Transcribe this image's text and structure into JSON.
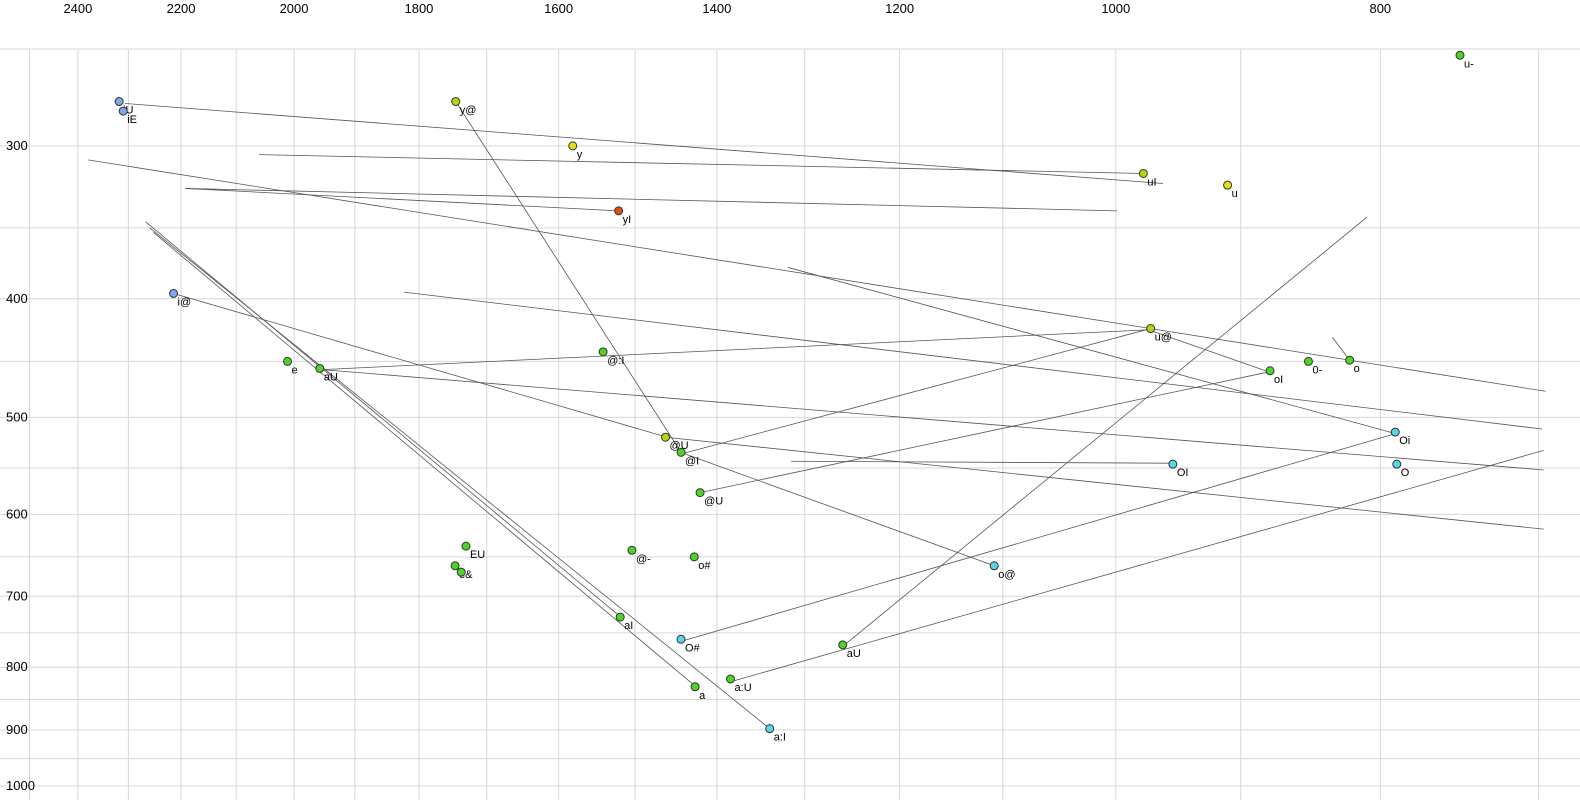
{
  "chart_data": {
    "type": "scatter",
    "title": "",
    "description": "Vowel formant diphthong plot: F2 (Hz) on top axis reversed log scale, F1 (Hz) on left axis increasing downward log scale, points are vowels with trajectory lines",
    "x_axis": {
      "tick_labels": [
        2400,
        2200,
        2000,
        1800,
        1600,
        1400,
        1200,
        1000,
        800
      ],
      "scale": "log",
      "range": [
        2563,
        676
      ],
      "grid_start": 2500,
      "grid_end": 700,
      "grid_step": 100
    },
    "y_axis": {
      "tick_labels": [
        300,
        400,
        500,
        600,
        700,
        800,
        900,
        1000
      ],
      "scale": "log",
      "range": [
        228,
        1027
      ],
      "grid_start": 250,
      "grid_end": 1000,
      "grid_step": 50
    },
    "colors": {
      "green": "#4fd32b",
      "yellowgreen": "#b9d411",
      "yellow": "#e3e00e",
      "blue": "#7ea8e8",
      "cyan": "#5cd3ee",
      "red": "#dd4f10",
      "grid": "#d6d6d6",
      "line": "#555555",
      "text": "#000000"
    },
    "points": [
      {
        "label": "u-",
        "f2": 748,
        "f1": 253,
        "color": "green"
      },
      {
        "label": "iU",
        "f2": 2318,
        "f1": 276,
        "color": "blue"
      },
      {
        "label": "iE",
        "f2": 2310,
        "f1": 281,
        "color": "blue"
      },
      {
        "label": "y@",
        "f2": 1745,
        "f1": 276,
        "color": "yellowgreen"
      },
      {
        "label": "y",
        "f2": 1581,
        "f1": 300,
        "color": "yellow"
      },
      {
        "label": "uI",
        "f2": 977,
        "f1": 316,
        "color": "yellowgreen"
      },
      {
        "label": "u",
        "f2": 910,
        "f1": 323,
        "color": "yellow"
      },
      {
        "label": "yI",
        "f2": 1521,
        "f1": 339,
        "color": "red"
      },
      {
        "label": "i@",
        "f2": 2214,
        "f1": 396,
        "color": "blue"
      },
      {
        "label": "u@",
        "f2": 971,
        "f1": 423,
        "color": "yellowgreen"
      },
      {
        "label": "0-",
        "f2": 850,
        "f1": 450,
        "color": "green"
      },
      {
        "label": "o",
        "f2": 821,
        "f1": 449,
        "color": "green"
      },
      {
        "label": "oI",
        "f2": 878,
        "f1": 458,
        "color": "green"
      },
      {
        "label": "e",
        "f2": 2011,
        "f1": 450,
        "color": "green"
      },
      {
        "label": "aU",
        "f2": 1957,
        "f1": 456,
        "color": "green"
      },
      {
        "label": "@:I",
        "f2": 1541,
        "f1": 442,
        "color": "green"
      },
      {
        "label": "@U",
        "f2": 1462,
        "f1": 519,
        "color": "yellowgreen"
      },
      {
        "label": "@I",
        "f2": 1443,
        "f1": 534,
        "color": "green"
      },
      {
        "label": "@U",
        "f2": 1420,
        "f1": 576,
        "color": "green"
      },
      {
        "label": "Oi",
        "f2": 790,
        "f1": 514,
        "color": "cyan"
      },
      {
        "label": "O",
        "f2": 789,
        "f1": 546,
        "color": "cyan"
      },
      {
        "label": "OI",
        "f2": 953,
        "f1": 546,
        "color": "cyan"
      },
      {
        "label": "EU",
        "f2": 1730,
        "f1": 637,
        "color": "green"
      },
      {
        "label": "e&",
        "f2": 1746,
        "f1": 661,
        "color": "green"
      },
      {
        "label": "",
        "f2": 1737,
        "f1": 669,
        "color": "green"
      },
      {
        "label": "@-",
        "f2": 1504,
        "f1": 642,
        "color": "green"
      },
      {
        "label": "o#",
        "f2": 1427,
        "f1": 650,
        "color": "green"
      },
      {
        "label": "o@",
        "f2": 1108,
        "f1": 661,
        "color": "cyan"
      },
      {
        "label": "aI",
        "f2": 1519,
        "f1": 728,
        "color": "green"
      },
      {
        "label": "O#",
        "f2": 1443,
        "f1": 759,
        "color": "cyan"
      },
      {
        "label": "aU",
        "f2": 1259,
        "f1": 767,
        "color": "green"
      },
      {
        "label": "a:U",
        "f2": 1384,
        "f1": 818,
        "color": "green"
      },
      {
        "label": "a",
        "f2": 1426,
        "f1": 830,
        "color": "green"
      },
      {
        "label": "a:I",
        "f2": 1339,
        "f1": 898,
        "color": "cyan"
      }
    ],
    "lines": [
      [
        [
          2307,
          277
        ],
        [
          961,
          322
        ]
      ],
      [
        [
          977,
          316
        ],
        [
          2060,
          305
        ]
      ],
      [
        [
          2192,
          325
        ],
        [
          999,
          339
        ]
      ],
      [
        [
          1521,
          339
        ],
        [
          2192,
          325
        ]
      ],
      [
        [
          1745,
          276
        ],
        [
          1443,
          534
        ]
      ],
      [
        [
          2214,
          396
        ],
        [
          1460,
          519
        ]
      ],
      [
        [
          971,
          423
        ],
        [
          1440,
          535
        ]
      ],
      [
        [
          1420,
          576
        ],
        [
          879,
          459
        ]
      ],
      [
        [
          1462,
          519
        ],
        [
          697,
          617
        ]
      ],
      [
        [
          2380,
          308
        ],
        [
          696,
          476
        ]
      ],
      [
        [
          2259,
          350
        ],
        [
          1339,
          898
        ]
      ],
      [
        [
          2252,
          353
        ],
        [
          1423,
          832
        ]
      ],
      [
        [
          2267,
          346
        ],
        [
          1517,
          729
        ]
      ],
      [
        [
          1953,
          457
        ],
        [
          973,
          424
        ]
      ],
      [
        [
          1953,
          457
        ],
        [
          697,
          552
        ]
      ],
      [
        [
          1257,
          767
        ],
        [
          809,
          343
        ]
      ],
      [
        [
          1381,
          821
        ],
        [
          697,
          532
        ]
      ],
      [
        [
          1440,
          761
        ],
        [
          791,
          516
        ]
      ],
      [
        [
          1108,
          661
        ],
        [
          1440,
          535
        ]
      ],
      [
        [
          833,
          430
        ],
        [
          821,
          449
        ]
      ],
      [
        [
          879,
          459
        ],
        [
          970,
          425
        ]
      ],
      [
        [
          791,
          515
        ],
        [
          1319,
          377
        ]
      ],
      [
        [
          955,
          545
        ],
        [
          1315,
          543
        ]
      ],
      [
        [
          1823,
          395
        ],
        [
          698,
          511
        ]
      ],
      [
        [
          1746,
          661
        ],
        [
          1737,
          669
        ]
      ]
    ],
    "marker": {
      "radius": 4,
      "stroke": "#333333"
    },
    "label_font_size": 11,
    "tick_font_size": 13
  }
}
